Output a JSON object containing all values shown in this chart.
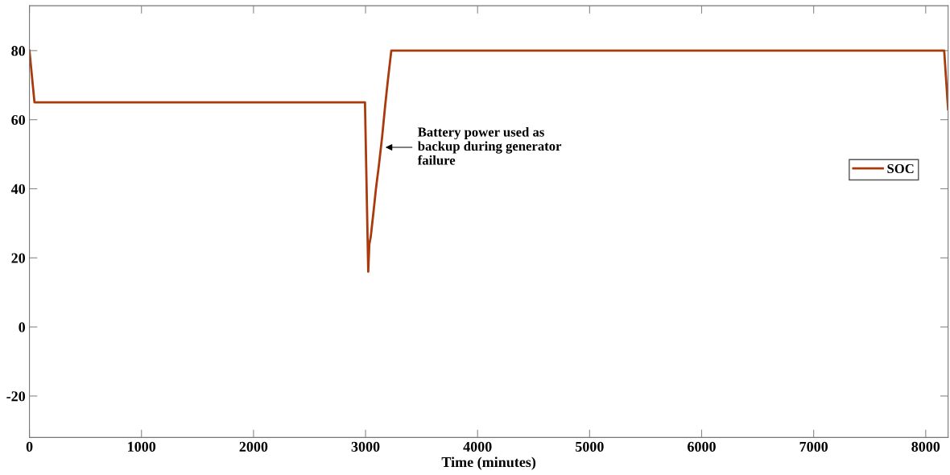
{
  "chart_data": {
    "type": "line",
    "xlabel": "Time (minutes)",
    "x": [
      0,
      45,
      2995,
      3024,
      3034,
      3046,
      3070,
      3093,
      3120,
      3148,
      3175,
      3198,
      3230,
      8165,
      8200
    ],
    "series": [
      {
        "name": "SOC",
        "color": "#a83a0c",
        "values": [
          80,
          65,
          65,
          16,
          24,
          26,
          33,
          40,
          47,
          55,
          64,
          71,
          80,
          80,
          63
        ]
      }
    ],
    "xlim": [
      0,
      8200
    ],
    "ylim": [
      -32,
      93
    ],
    "xticks": [
      0,
      1000,
      2000,
      3000,
      4000,
      5000,
      6000,
      7000,
      8000
    ],
    "yticks": [
      -20,
      0,
      20,
      40,
      60,
      80
    ],
    "annotations": [
      {
        "text": "Battery power used as\nbackup during generator\nfailure",
        "x": 3178,
        "y": 52
      }
    ],
    "legend": "right",
    "grid": false,
    "marker": "none",
    "line_style": "solid"
  }
}
